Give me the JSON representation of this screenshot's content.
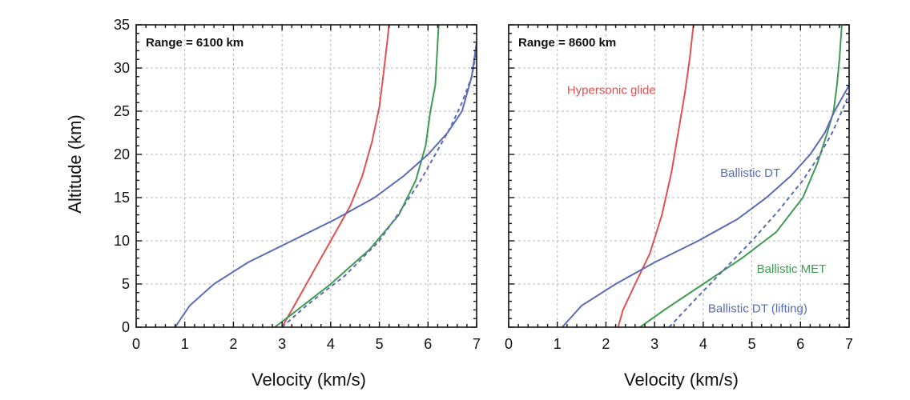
{
  "figure": {
    "ylabel": "Altitude (km)"
  },
  "chart_data": [
    {
      "type": "line",
      "panel_label": "Range = 6100 km",
      "xlabel": "Velocity (km/s)",
      "ylabel": "Altitude (km)",
      "xlim": [
        0,
        7
      ],
      "ylim": [
        0,
        35
      ],
      "xticks": [
        0,
        1,
        2,
        3,
        4,
        5,
        6,
        7
      ],
      "yticks": [
        0,
        5,
        10,
        15,
        20,
        25,
        30,
        35
      ],
      "grid": true,
      "series": [
        {
          "name": "Hypersonic glide",
          "color": "#e05252",
          "style": "solid",
          "x": [
            3.0,
            3.3,
            3.7,
            4.05,
            4.4,
            4.65,
            4.85,
            5.0,
            5.1,
            5.2
          ],
          "y": [
            0,
            3,
            7,
            10.5,
            14,
            17.5,
            21.5,
            25.5,
            30,
            35
          ]
        },
        {
          "name": "Ballistic MET",
          "color": "#3f9a52",
          "style": "solid",
          "x": [
            2.85,
            3.2,
            4.0,
            4.8,
            5.4,
            5.75,
            5.95,
            6.05,
            6.15,
            6.18,
            6.22
          ],
          "y": [
            0,
            1.5,
            5,
            9,
            13,
            17,
            21,
            25,
            28,
            31,
            35
          ]
        },
        {
          "name": "Ballistic DT",
          "color": "#5b6bb5",
          "style": "solid",
          "x": [
            0.8,
            1.1,
            1.6,
            2.3,
            3.2,
            4.1,
            4.9,
            5.5,
            6.0,
            6.4,
            6.7,
            6.9,
            7.0
          ],
          "y": [
            0,
            2.5,
            5,
            7.5,
            10,
            12.5,
            15,
            17.5,
            20,
            22.5,
            25,
            29,
            33
          ]
        },
        {
          "name": "Ballistic DT (lifting)",
          "color": "#5b6bb5",
          "style": "dashed",
          "x": [
            3.0,
            3.5,
            4.3,
            5.0,
            5.5,
            5.85,
            6.15,
            6.45,
            6.7,
            6.9,
            7.0
          ],
          "y": [
            0,
            2.5,
            6,
            10,
            14,
            17,
            20,
            23,
            26,
            29,
            32
          ]
        }
      ]
    },
    {
      "type": "line",
      "panel_label": "Range = 8600 km",
      "xlabel": "Velocity (km/s)",
      "ylabel": "",
      "xlim": [
        0,
        7
      ],
      "ylim": [
        0,
        35
      ],
      "xticks": [
        0,
        1,
        2,
        3,
        4,
        5,
        6,
        7
      ],
      "yticks": [
        0,
        5,
        10,
        15,
        20,
        25,
        30,
        35
      ],
      "grid": true,
      "annotations": [
        {
          "text": "Hypersonic glide",
          "x": 1.2,
          "y": 27,
          "color": "#e05252"
        },
        {
          "text": "Ballistic DT",
          "x": 4.35,
          "y": 17.4,
          "color": "#5b6bb5"
        },
        {
          "text": "Ballistic MET",
          "x": 5.1,
          "y": 6.3,
          "color": "#3f9a52"
        },
        {
          "text": "Ballistic DT (lifting)",
          "x": 4.1,
          "y": 1.7,
          "color": "#5b6bb5"
        }
      ],
      "series": [
        {
          "name": "Hypersonic glide",
          "color": "#e05252",
          "style": "solid",
          "x": [
            2.25,
            2.35,
            2.6,
            2.9,
            3.15,
            3.35,
            3.5,
            3.62,
            3.72,
            3.8
          ],
          "y": [
            0,
            2,
            5,
            8.5,
            13,
            18,
            23,
            27,
            31,
            35
          ]
        },
        {
          "name": "Ballistic MET",
          "color": "#3f9a52",
          "style": "solid",
          "x": [
            2.7,
            3.2,
            4.0,
            4.8,
            5.5,
            6.05,
            6.35,
            6.55,
            6.68,
            6.75,
            6.8,
            6.85
          ],
          "y": [
            0,
            2,
            5,
            8,
            11,
            15,
            19,
            22.5,
            25,
            28,
            31,
            35
          ]
        },
        {
          "name": "Ballistic DT",
          "color": "#5b6bb5",
          "style": "solid",
          "x": [
            1.1,
            1.5,
            2.2,
            3.0,
            3.9,
            4.7,
            5.3,
            5.8,
            6.2,
            6.5,
            6.7,
            6.9,
            7.0
          ],
          "y": [
            0,
            2.5,
            5,
            7.5,
            10,
            12.5,
            15,
            17.5,
            20,
            22.5,
            25,
            27,
            28
          ]
        },
        {
          "name": "Ballistic DT (lifting)",
          "color": "#5b6bb5",
          "style": "dashed",
          "x": [
            3.3,
            3.8,
            4.4,
            5.0,
            5.55,
            6.05,
            6.4,
            6.65,
            6.85,
            7.0
          ],
          "y": [
            0,
            3,
            6.5,
            10,
            13.5,
            17,
            20,
            22.5,
            25,
            27
          ]
        }
      ]
    }
  ]
}
